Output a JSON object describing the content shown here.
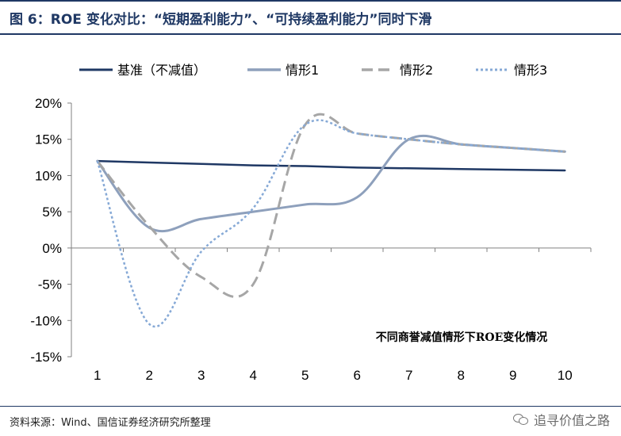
{
  "title": "图 6：ROE 变化对比：“短期盈利能力”、“可持续盈利能力”同时下滑",
  "source": "资料来源：Wind、国信证券经济研究所整理",
  "watermark": "追寻价值之路",
  "colors": {
    "frame": "#1f3864",
    "baseline": "#1f3864",
    "scenario1": "#8ea0bc",
    "scenario2": "#a6a6a6",
    "scenario3": "#86a9d6",
    "axis": "#808080",
    "text": "#000000"
  },
  "chart_data": {
    "type": "line",
    "annotation": "不同商誉减值情形下ROE变化情况",
    "x": [
      1,
      2,
      3,
      4,
      5,
      6,
      7,
      8,
      9,
      10
    ],
    "x_tick_labels": [
      "1",
      "2",
      "3",
      "4",
      "5",
      "6",
      "7",
      "8",
      "9",
      "10"
    ],
    "y_tick_labels": [
      "20%",
      "15%",
      "10%",
      "5%",
      "0%",
      "-5%",
      "-10%",
      "-15%"
    ],
    "ylim": [
      -15,
      20
    ],
    "y_unit": "%",
    "legend_position": "top",
    "grid": false,
    "series": [
      {
        "name": "基准（不减值）",
        "style": "solid-thick",
        "values": [
          12.0,
          11.8,
          11.6,
          11.4,
          11.3,
          11.1,
          11.0,
          10.9,
          10.8,
          10.7
        ]
      },
      {
        "name": "情形1",
        "style": "solid",
        "values": [
          12.0,
          2.8,
          4.0,
          5.0,
          6.0,
          7.0,
          15.0,
          14.3,
          13.8,
          13.3
        ]
      },
      {
        "name": "情形2",
        "style": "dashed",
        "values": [
          12.0,
          3.0,
          -4.0,
          -5.0,
          17.0,
          15.8,
          15.0,
          14.3,
          13.8,
          13.3
        ]
      },
      {
        "name": "情形3",
        "style": "dotted",
        "values": [
          12.0,
          -10.5,
          -0.5,
          5.5,
          17.0,
          15.8,
          15.0,
          14.3,
          13.8,
          13.3
        ]
      }
    ]
  }
}
